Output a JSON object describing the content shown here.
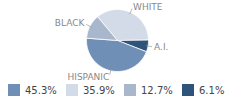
{
  "chart_data": {
    "type": "pie",
    "categories": [
      "HISPANIC",
      "WHITE",
      "BLACK",
      "A.I."
    ],
    "values": [
      45.3,
      35.9,
      12.7,
      6.1
    ],
    "value_labels": [
      "45.3%",
      "35.9%",
      "12.7%",
      "6.1%"
    ],
    "colors": [
      "#6f8fb6",
      "#d2dbe7",
      "#a8b7cb",
      "#2f5479"
    ],
    "legend": "bottom"
  }
}
